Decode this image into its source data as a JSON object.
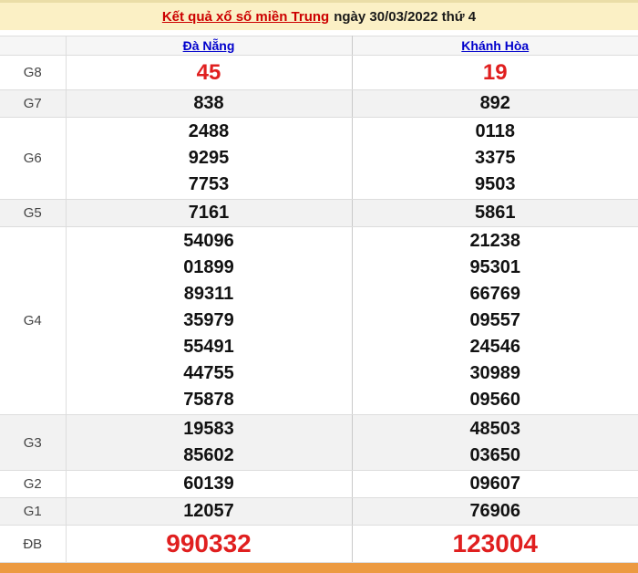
{
  "title": {
    "link": "Kết quả xổ số miền Trung",
    "rest": "ngày 30/03/2022 thứ 4"
  },
  "columns": {
    "province_1": "Đà Nẵng",
    "province_2": "Khánh Hòa"
  },
  "colors": {
    "title_bar_bg": "#fbf0c5",
    "title_link_red": "#cc0000",
    "column_link_blue": "#0000cc",
    "highlight_red": "#e01f1f",
    "stripe_gray": "#f2f2f2",
    "bottom_bar_orange": "#ec9a41"
  },
  "prizes": [
    {
      "label": "G8",
      "da_nang": [
        "45"
      ],
      "khanh_hoa": [
        "19"
      ]
    },
    {
      "label": "G7",
      "da_nang": [
        "838"
      ],
      "khanh_hoa": [
        "892"
      ]
    },
    {
      "label": "G6",
      "da_nang": [
        "2488",
        "9295",
        "7753"
      ],
      "khanh_hoa": [
        "0118",
        "3375",
        "9503"
      ]
    },
    {
      "label": "G5",
      "da_nang": [
        "7161"
      ],
      "khanh_hoa": [
        "5861"
      ]
    },
    {
      "label": "G4",
      "da_nang": [
        "54096",
        "01899",
        "89311",
        "35979",
        "55491",
        "44755",
        "75878"
      ],
      "khanh_hoa": [
        "21238",
        "95301",
        "66769",
        "09557",
        "24546",
        "30989",
        "09560"
      ]
    },
    {
      "label": "G3",
      "da_nang": [
        "19583",
        "85602"
      ],
      "khanh_hoa": [
        "48503",
        "03650"
      ]
    },
    {
      "label": "G2",
      "da_nang": [
        "60139"
      ],
      "khanh_hoa": [
        "09607"
      ]
    },
    {
      "label": "G1",
      "da_nang": [
        "12057"
      ],
      "khanh_hoa": [
        "76906"
      ]
    },
    {
      "label": "ĐB",
      "da_nang": [
        "990332"
      ],
      "khanh_hoa": [
        "123004"
      ]
    }
  ]
}
